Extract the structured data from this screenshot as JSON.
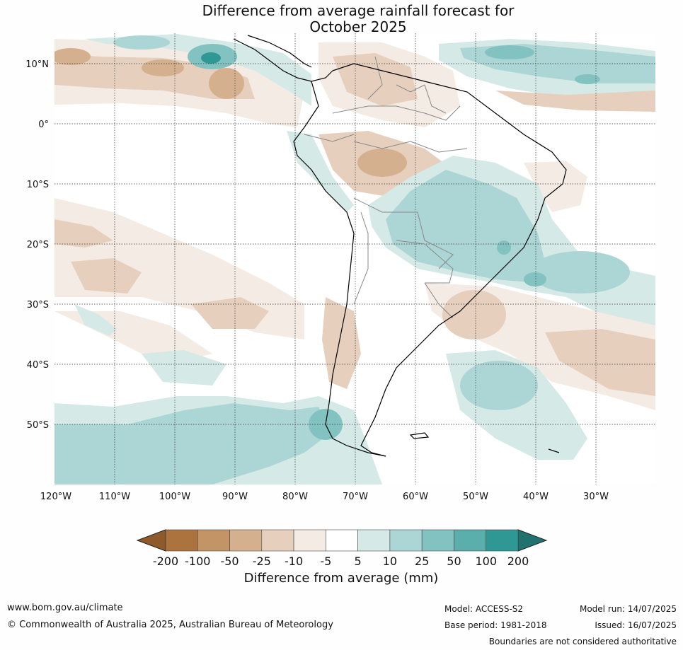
{
  "title_line1": "Difference from average rainfall forecast for",
  "title_line2": "October 2025",
  "lon_labels": [
    "120°W",
    "110°W",
    "100°W",
    "90°W",
    "80°W",
    "70°W",
    "60°W",
    "50°W",
    "40°W",
    "30°W"
  ],
  "lat_labels": [
    "10°N",
    "0°",
    "10°S",
    "20°S",
    "30°S",
    "40°S",
    "50°S"
  ],
  "legend": {
    "title": "Difference from average (mm)",
    "tick_labels": [
      "-200",
      "-100",
      "-50",
      "-25",
      "-10",
      "-5",
      "5",
      "10",
      "25",
      "50",
      "100",
      "200"
    ],
    "colors": [
      "#8e5a2c",
      "#ad733f",
      "#c39466",
      "#d4b08e",
      "#e6d0bd",
      "#f4ebe4",
      "#ffffff",
      "#d5e9e7",
      "#acd6d5",
      "#82c2c1",
      "#5aaeac",
      "#2f9894",
      "#21716e"
    ]
  },
  "footer": {
    "website": "www.bom.gov.au/climate",
    "copyright": "© Commonwealth of Australia 2025, Australian Bureau of Meteorology",
    "model": "Model: ACCESS-S2",
    "base_period": "Base period: 1981-2018",
    "model_run": "Model run: 14/07/2025",
    "issued": "Issued: 16/07/2025",
    "disclaimer": "Boundaries are not considered authoritative"
  },
  "icons": {
    "legend_arrow_left": "triangle-left",
    "legend_arrow_right": "triangle-right"
  }
}
